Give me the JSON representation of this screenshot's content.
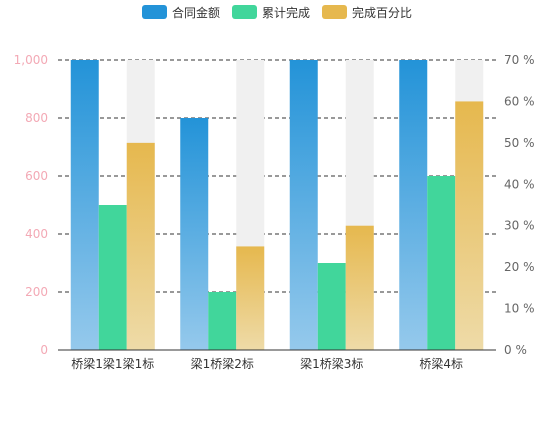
{
  "chart_data": {
    "type": "bar",
    "categories": [
      "桥梁1梁1梁1标",
      "梁1桥梁2标",
      "梁1桥梁3标",
      "桥梁4标"
    ],
    "series": [
      {
        "name": "合同金额",
        "axis": "left",
        "values": [
          1000,
          800,
          1000,
          1000
        ]
      },
      {
        "name": "累计完成",
        "axis": "left",
        "values": [
          500,
          200,
          300,
          600
        ]
      },
      {
        "name": "完成百分比",
        "axis": "right",
        "unit": "%",
        "values": [
          50,
          25,
          30,
          60
        ]
      }
    ],
    "y_left": {
      "min": 0,
      "max": 1000,
      "ticks": [
        "0",
        "200",
        "400",
        "600",
        "800",
        "1,000"
      ]
    },
    "y_right": {
      "min": 0,
      "max": 70,
      "ticks": [
        "0 %",
        "10 %",
        "20 %",
        "30 %",
        "40 %",
        "50 %",
        "60 %",
        "70 %"
      ]
    },
    "background_bar_value": 70,
    "legend_position": "top-center",
    "grid": true,
    "colors": {
      "contract_top": "#2393d8",
      "contract_bottom": "#95c9ec",
      "completed": "#41d69b",
      "percent_top": "#e6b84e",
      "percent_bottom": "#eedba8",
      "background_bar": "#f0f0f0",
      "left_axis_text": "#f3a9b5",
      "right_axis_text": "#666666",
      "category_text": "#333333",
      "grid": "#333333"
    }
  }
}
